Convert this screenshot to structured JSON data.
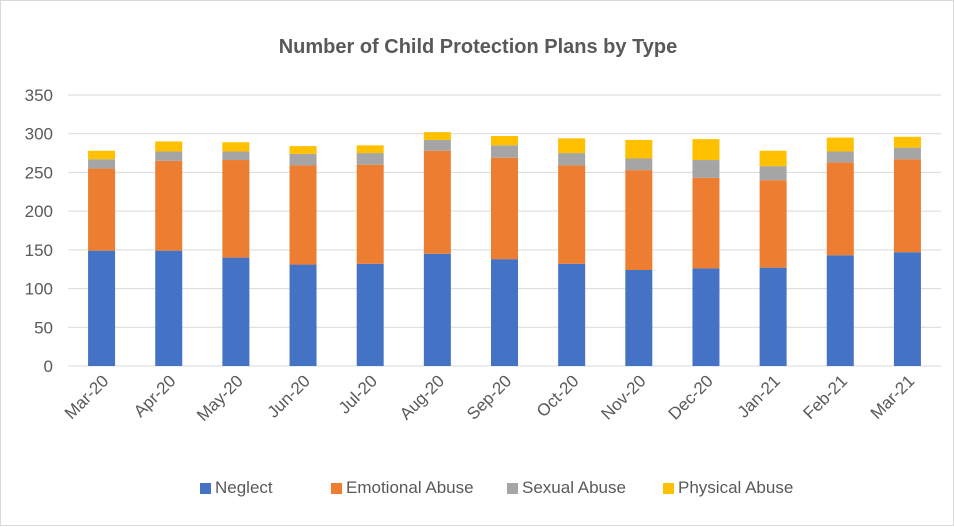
{
  "chart_data": {
    "type": "bar",
    "stacked": true,
    "title": "Number of Child Protection Plans by Type",
    "xlabel": "",
    "ylabel": "",
    "ylim": [
      0,
      350
    ],
    "yticks": [
      0,
      50,
      100,
      150,
      200,
      250,
      300,
      350
    ],
    "grid": true,
    "legend_position": "bottom",
    "categories": [
      "Mar-20",
      "Apr-20",
      "May-20",
      "Jun-20",
      "Jul-20",
      "Aug-20",
      "Sep-20",
      "Oct-20",
      "Nov-20",
      "Dec-20",
      "Jan-21",
      "Feb-21",
      "Mar-21"
    ],
    "series": [
      {
        "name": "Neglect",
        "color": "#4472c4",
        "values": [
          149,
          149,
          140,
          131,
          132,
          145,
          138,
          132,
          124,
          126,
          127,
          143,
          147
        ]
      },
      {
        "name": "Emotional Abuse",
        "color": "#ed7d31",
        "values": [
          106,
          116,
          126,
          128,
          128,
          133,
          131,
          127,
          129,
          117,
          113,
          120,
          120
        ]
      },
      {
        "name": "Sexual Abuse",
        "color": "#a5a5a5",
        "values": [
          12,
          12,
          11,
          15,
          15,
          14,
          16,
          16,
          15,
          23,
          18,
          14,
          15
        ]
      },
      {
        "name": "Physical Abuse",
        "color": "#ffc000",
        "values": [
          11,
          13,
          12,
          10,
          10,
          10,
          12,
          19,
          24,
          27,
          20,
          18,
          14
        ]
      }
    ]
  }
}
